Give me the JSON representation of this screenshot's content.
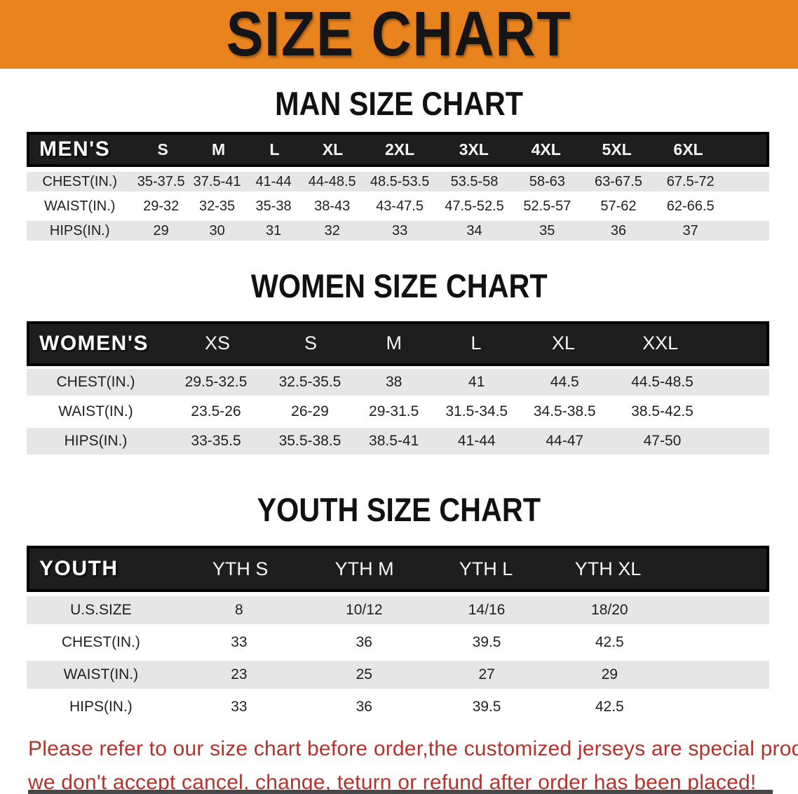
{
  "banner": {
    "title": "SIZE CHART"
  },
  "colors": {
    "banner_orange": "#e8831d",
    "table_header_black": "#1e1e1e",
    "row_shade_gray": "#e6e6e6",
    "note_red": "#b2332c"
  },
  "sections": {
    "men": {
      "heading": "MAN SIZE CHART",
      "table": {
        "corner": "MEN'S",
        "sizes": [
          "S",
          "M",
          "L",
          "XL",
          "2XL",
          "3XL",
          "4XL",
          "5XL",
          "6XL"
        ],
        "rows": [
          {
            "label": "CHEST(IN.)",
            "values": [
              "35-37.5",
              "37.5-41",
              "41-44",
              "44-48.5",
              "48.5-53.5",
              "53.5-58",
              "58-63",
              "63-67.5",
              "67.5-72"
            ]
          },
          {
            "label": "WAIST(IN.)",
            "values": [
              "29-32",
              "32-35",
              "35-38",
              "38-43",
              "43-47.5",
              "47.5-52.5",
              "52.5-57",
              "57-62",
              "62-66.5"
            ]
          },
          {
            "label": "HIPS(IN.)",
            "values": [
              "29",
              "30",
              "31",
              "32",
              "33",
              "34",
              "35",
              "36",
              "37"
            ]
          }
        ]
      }
    },
    "women": {
      "heading": "WOMEN SIZE CHART",
      "table": {
        "corner": "WOMEN'S",
        "sizes": [
          "XS",
          "S",
          "M",
          "L",
          "XL",
          "XXL"
        ],
        "rows": [
          {
            "label": "CHEST(IN.)",
            "values": [
              "29.5-32.5",
              "32.5-35.5",
              "38",
              "41",
              "44.5",
              "44.5-48.5"
            ]
          },
          {
            "label": "WAIST(IN.)",
            "values": [
              "23.5-26",
              "26-29",
              "29-31.5",
              "31.5-34.5",
              "34.5-38.5",
              "38.5-42.5"
            ]
          },
          {
            "label": "HIPS(IN.)",
            "values": [
              "33-35.5",
              "35.5-38.5",
              "38.5-41",
              "41-44",
              "44-47",
              "47-50"
            ]
          }
        ]
      }
    },
    "youth": {
      "heading": "YOUTH SIZE CHART",
      "table": {
        "corner": "YOUTH",
        "sizes": [
          "YTH S",
          "YTH M",
          "YTH L",
          "YTH XL"
        ],
        "rows": [
          {
            "label": "U.S.SIZE",
            "values": [
              "8",
              "10/12",
              "14/16",
              "18/20"
            ]
          },
          {
            "label": "CHEST(IN.)",
            "values": [
              "33",
              "36",
              "39.5",
              "42.5"
            ]
          },
          {
            "label": "WAIST(IN.)",
            "values": [
              "23",
              "25",
              "27",
              "29"
            ]
          },
          {
            "label": "HIPS(IN.)",
            "values": [
              "33",
              "36",
              "39.5",
              "42.5"
            ]
          }
        ]
      }
    }
  },
  "note": {
    "line1": "Please refer to our size chart before order,the customized jerseys are special products,",
    "line2": "we don't accept cancel, change, teturn or refund after order has been placed!"
  }
}
